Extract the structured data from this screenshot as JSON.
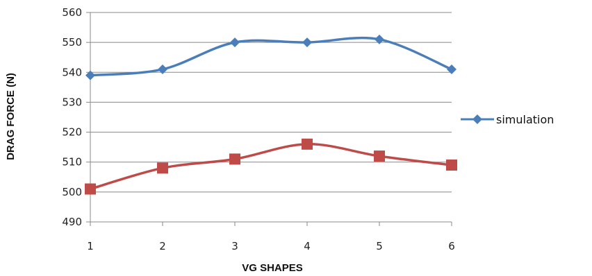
{
  "chart_data": {
    "type": "line",
    "title": "",
    "xlabel": "VG SHAPES",
    "ylabel": "DRAG FORCE  (N)",
    "x": [
      1,
      2,
      3,
      4,
      5,
      6
    ],
    "ylim": [
      490,
      560
    ],
    "yticks": [
      490,
      500,
      510,
      520,
      530,
      540,
      550,
      560
    ],
    "grid": "horizontal",
    "legend_position": "right",
    "series": [
      {
        "name": "simulation",
        "values": [
          539,
          541,
          550,
          550,
          551,
          541
        ],
        "color": "#4a7ebb",
        "marker": "diamond"
      },
      {
        "values": [
          501,
          508,
          511,
          516,
          512,
          509
        ],
        "color": "#be4b48",
        "marker": "square"
      }
    ]
  }
}
